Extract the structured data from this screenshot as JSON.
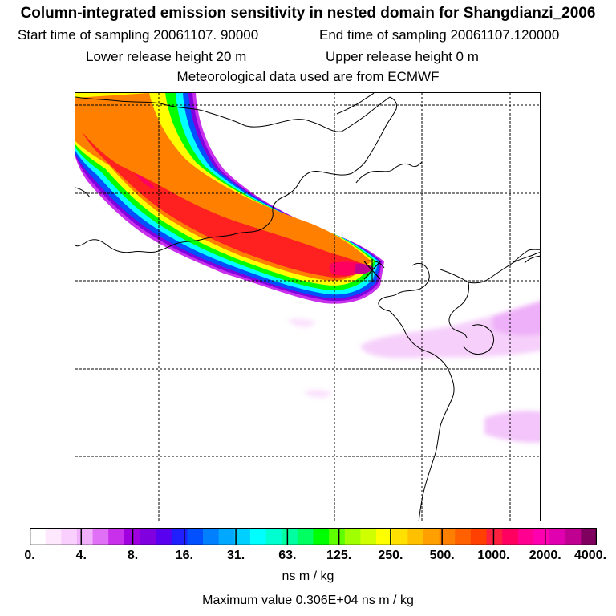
{
  "title": {
    "main": "Column-integrated emission sensitivity in nested domain for Shangdianzi_2006",
    "start_sampling": "Start time of sampling 20061107. 90000",
    "end_sampling": "End time of sampling 20061107.120000",
    "lower_release": "Lower release height   20 m",
    "upper_release": "Upper release height    0 m",
    "met_source": "Meteorological data used are from ECMWF"
  },
  "colorbar": {
    "ticks": [
      "0.",
      "4.",
      "8.",
      "16.",
      "31.",
      "63.",
      "125.",
      "250.",
      "500.",
      "1000.",
      "2000.",
      "4000."
    ],
    "unit": "ns m / kg",
    "colors": [
      "#ffffff",
      "#fde8fe",
      "#f9d0fd",
      "#f0b0fb",
      "#e070f5",
      "#c830ec",
      "#a000e0",
      "#8000e0",
      "#5a00f0",
      "#2020ff",
      "#0050ff",
      "#0080ff",
      "#00a8ff",
      "#00d0ff",
      "#00ffff",
      "#00ffd0",
      "#00ffa0",
      "#00ff60",
      "#00ff00",
      "#60ff00",
      "#a0ff00",
      "#d0ff00",
      "#ffff00",
      "#ffe000",
      "#ffc000",
      "#ffa000",
      "#ff8000",
      "#ff6000",
      "#ff4000",
      "#ff2040",
      "#ff0060",
      "#ff0090",
      "#ff00b0",
      "#e000b0",
      "#c00090",
      "#800060"
    ]
  },
  "max_value": "Maximum value  0.306E+04 ns m / kg",
  "map": {
    "receptor": "Shangdianzi",
    "receptor_marker": "x-cross"
  }
}
